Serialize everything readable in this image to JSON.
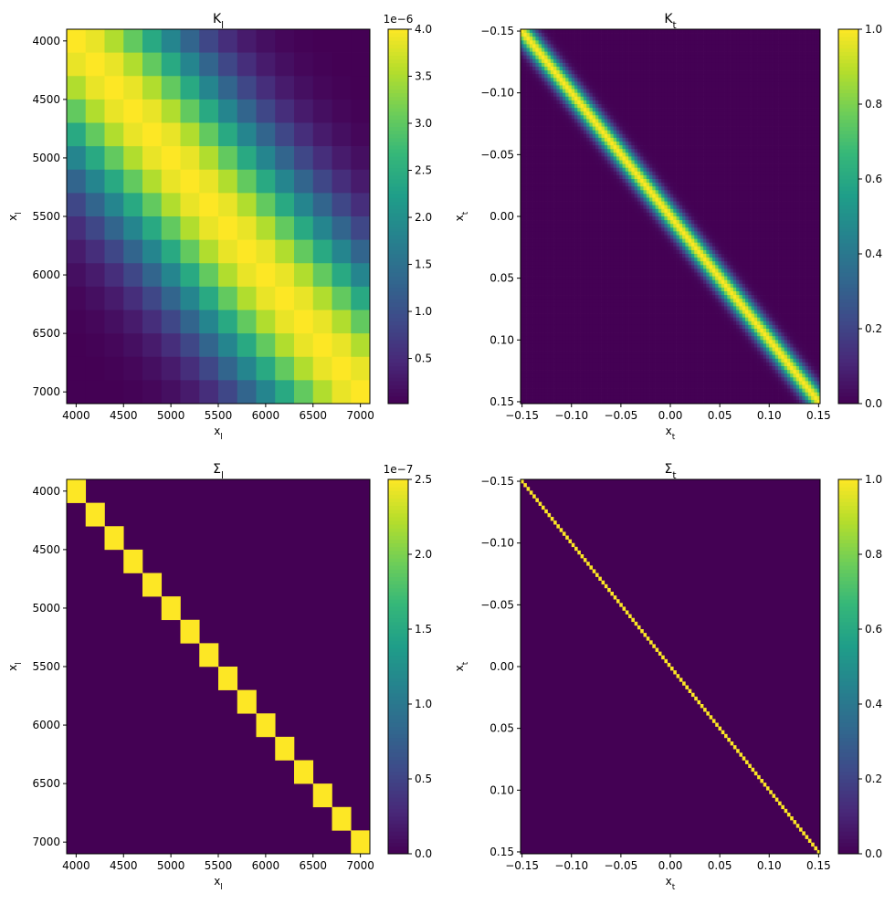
{
  "colormap": "viridis",
  "viridis_stops": [
    "#440154",
    "#482878",
    "#3e4a89",
    "#31688e",
    "#26828e",
    "#1f9e89",
    "#35b779",
    "#6ece58",
    "#b5de2b",
    "#fde725"
  ],
  "chart_data": [
    {
      "type": "heatmap",
      "name": "K_l",
      "title_base": "K",
      "title_sub": "l",
      "xlabel_base": "x",
      "xlabel_sub": "l",
      "ylabel_base": "x",
      "ylabel_sub": "l",
      "x_range": [
        3900,
        7100
      ],
      "y_range": [
        3900,
        7100
      ],
      "y_inverted": true,
      "x_ticks": [
        4000,
        4500,
        5000,
        5500,
        6000,
        6500,
        7000
      ],
      "x_tick_labels": [
        "4000",
        "4500",
        "5000",
        "5500",
        "6000",
        "6500",
        "7000"
      ],
      "y_ticks": [
        4000,
        4500,
        5000,
        5500,
        6000,
        6500,
        7000
      ],
      "y_tick_labels": [
        "4000",
        "4500",
        "5000",
        "5500",
        "6000",
        "6500",
        "7000"
      ],
      "grid_size": 16,
      "cell_centers": [
        4000,
        4200,
        4400,
        4600,
        4800,
        5000,
        5200,
        5400,
        5600,
        5800,
        6000,
        6200,
        6400,
        6600,
        6800,
        7000
      ],
      "kernel": "squared-exponential",
      "amplitude": 4e-06,
      "length_scale": 800,
      "colorbar_range": [
        2e-08,
        4e-06
      ],
      "colorbar_ticks": [
        0.5,
        1.0,
        1.5,
        2.0,
        2.5,
        3.0,
        3.5,
        4.0
      ],
      "colorbar_tick_labels": [
        "0.5",
        "1.0",
        "1.5",
        "2.0",
        "2.5",
        "3.0",
        "3.5",
        "4.0"
      ],
      "colorbar_scale": 1e-06,
      "colorbar_offset_label": "1e−6",
      "grid": false
    },
    {
      "type": "heatmap",
      "name": "K_t",
      "title_base": "K",
      "title_sub": "t",
      "xlabel_base": "x",
      "xlabel_sub": "t",
      "ylabel_base": "x",
      "ylabel_sub": "t",
      "x_range": [
        -0.1515,
        0.1515
      ],
      "y_range": [
        -0.1515,
        0.1515
      ],
      "y_inverted": true,
      "x_ticks": [
        -0.15,
        -0.1,
        -0.05,
        0.0,
        0.05,
        0.1,
        0.15
      ],
      "x_tick_labels": [
        "−0.15",
        "−0.10",
        "−0.05",
        "0.00",
        "0.05",
        "0.10",
        "0.15"
      ],
      "y_ticks": [
        -0.15,
        -0.1,
        -0.05,
        0.0,
        0.05,
        0.1,
        0.15
      ],
      "y_tick_labels": [
        "−0.15",
        "−0.10",
        "−0.05",
        "0.00",
        "0.05",
        "0.10",
        "0.15"
      ],
      "grid_size": 100,
      "kernel": "squared-exponential",
      "amplitude": 1.0,
      "length_scale": 0.0085,
      "colorbar_range": [
        0.0,
        1.0
      ],
      "colorbar_ticks": [
        0.0,
        0.2,
        0.4,
        0.6,
        0.8,
        1.0
      ],
      "colorbar_tick_labels": [
        "0.0",
        "0.2",
        "0.4",
        "0.6",
        "0.8",
        "1.0"
      ],
      "colorbar_scale": 1,
      "colorbar_offset_label": "",
      "grid": false
    },
    {
      "type": "heatmap",
      "name": "Sigma_l",
      "title_base": "Σ",
      "title_sub": "l",
      "xlabel_base": "x",
      "xlabel_sub": "l",
      "ylabel_base": "x",
      "ylabel_sub": "l",
      "x_range": [
        3900,
        7100
      ],
      "y_range": [
        3900,
        7100
      ],
      "y_inverted": true,
      "x_ticks": [
        4000,
        4500,
        5000,
        5500,
        6000,
        6500,
        7000
      ],
      "x_tick_labels": [
        "4000",
        "4500",
        "5000",
        "5500",
        "6000",
        "6500",
        "7000"
      ],
      "y_ticks": [
        4000,
        4500,
        5000,
        5500,
        6000,
        6500,
        7000
      ],
      "y_tick_labels": [
        "4000",
        "4500",
        "5000",
        "5500",
        "6000",
        "6500",
        "7000"
      ],
      "grid_size": 16,
      "kernel": "identity",
      "amplitude": 2.5e-07,
      "colorbar_range": [
        0.0,
        2.5e-07
      ],
      "colorbar_ticks": [
        0.0,
        0.5,
        1.0,
        1.5,
        2.0,
        2.5
      ],
      "colorbar_tick_labels": [
        "0.0",
        "0.5",
        "1.0",
        "1.5",
        "2.0",
        "2.5"
      ],
      "colorbar_scale": 1e-07,
      "colorbar_offset_label": "1e−7",
      "grid": false
    },
    {
      "type": "heatmap",
      "name": "Sigma_t",
      "title_base": "Σ",
      "title_sub": "t",
      "xlabel_base": "x",
      "xlabel_sub": "t",
      "ylabel_base": "x",
      "ylabel_sub": "t",
      "x_range": [
        -0.1515,
        0.1515
      ],
      "y_range": [
        -0.1515,
        0.1515
      ],
      "y_inverted": true,
      "x_ticks": [
        -0.15,
        -0.1,
        -0.05,
        0.0,
        0.05,
        0.1,
        0.15
      ],
      "x_tick_labels": [
        "−0.15",
        "−0.10",
        "−0.05",
        "0.00",
        "0.05",
        "0.10",
        "0.15"
      ],
      "y_ticks": [
        -0.15,
        -0.1,
        -0.05,
        0.0,
        0.05,
        0.1,
        0.15
      ],
      "y_tick_labels": [
        "−0.15",
        "−0.10",
        "−0.05",
        "0.00",
        "0.05",
        "0.10",
        "0.15"
      ],
      "grid_size": 100,
      "kernel": "identity",
      "amplitude": 1.0,
      "colorbar_range": [
        0.0,
        1.0
      ],
      "colorbar_ticks": [
        0.0,
        0.2,
        0.4,
        0.6,
        0.8,
        1.0
      ],
      "colorbar_tick_labels": [
        "0.0",
        "0.2",
        "0.4",
        "0.6",
        "0.8",
        "1.0"
      ],
      "colorbar_scale": 1,
      "colorbar_offset_label": "",
      "grid": false
    }
  ]
}
